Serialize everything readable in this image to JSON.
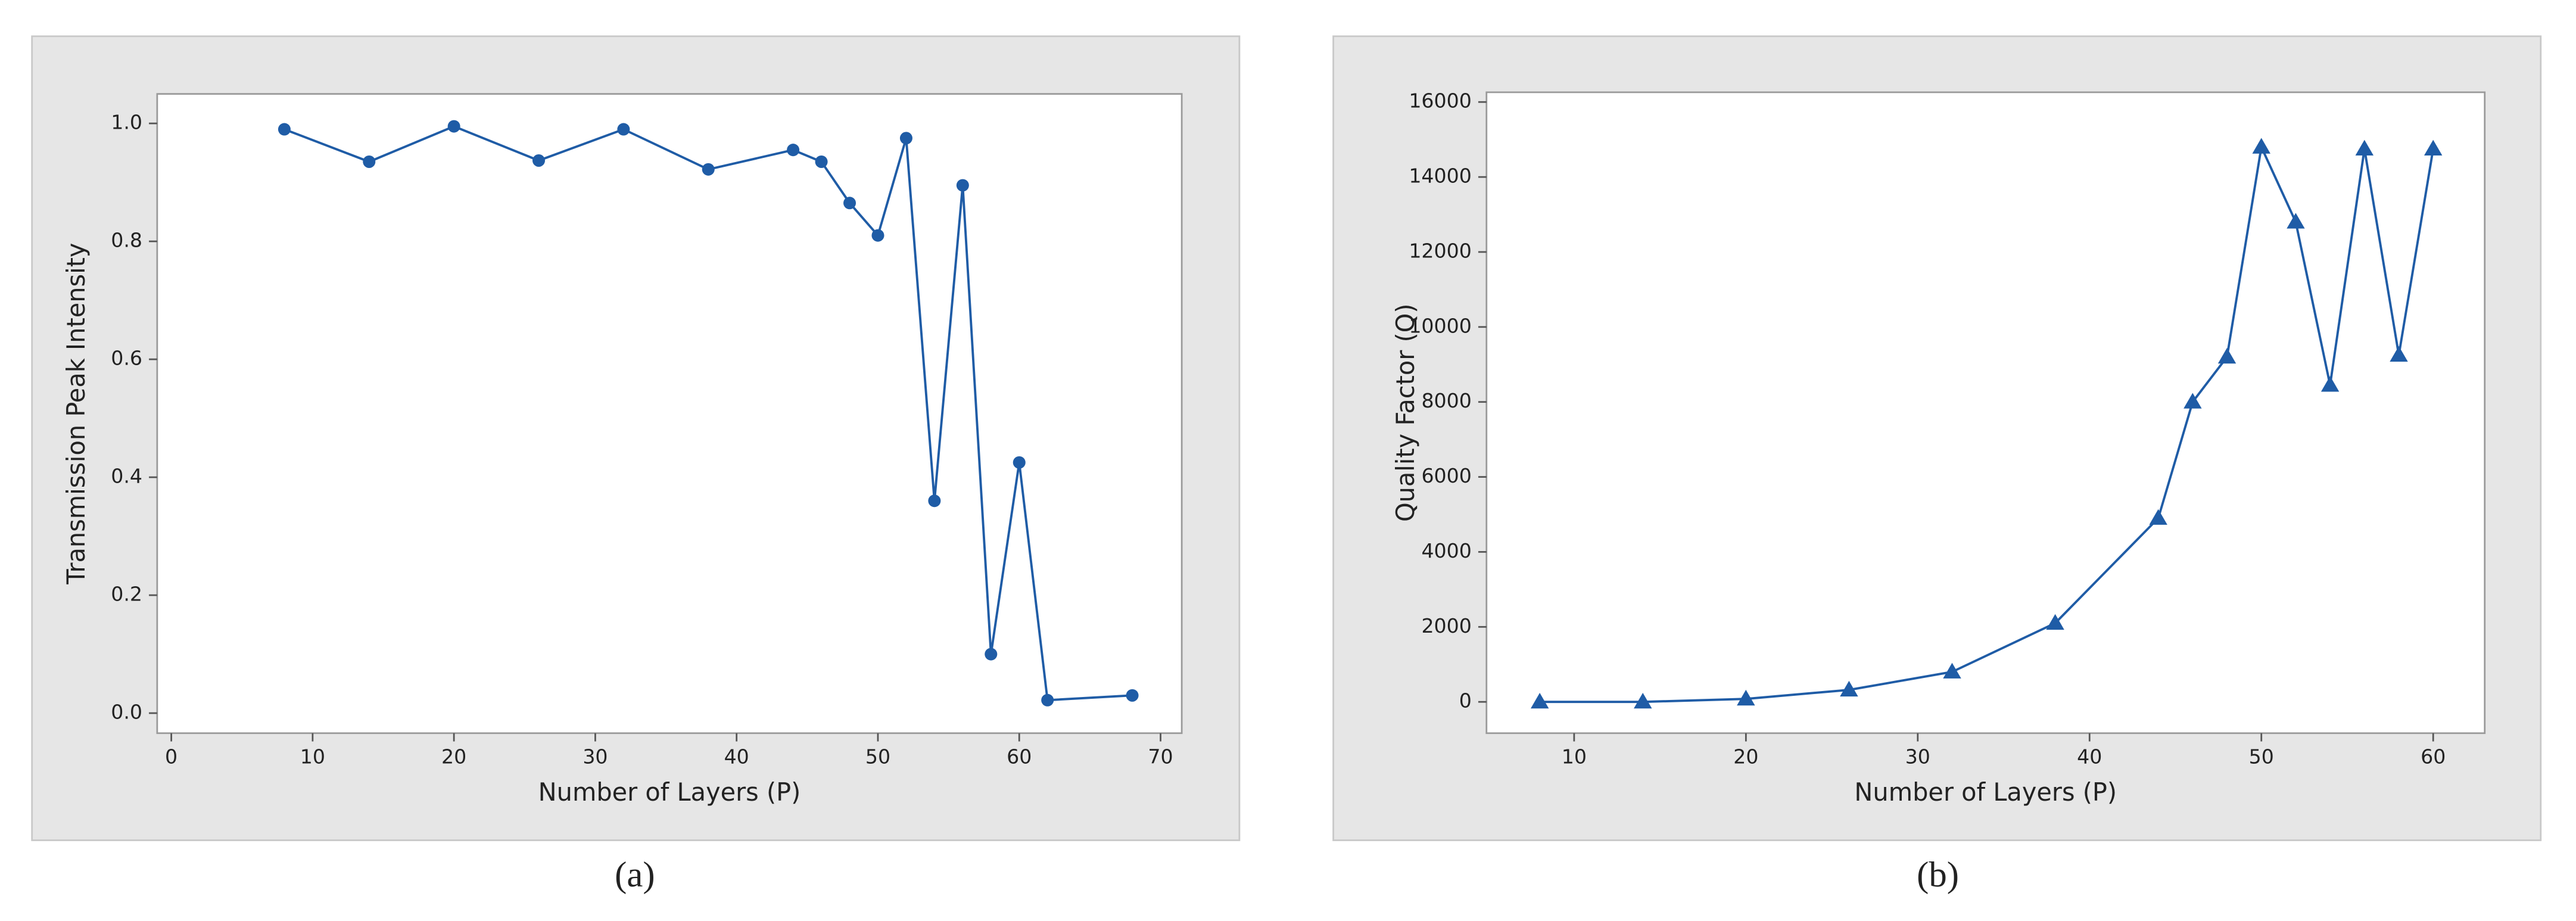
{
  "chart_data": [
    {
      "type": "line",
      "caption": "(a)",
      "x_label": "Number of Layers (P)",
      "y_label": "Transmission Peak Intensity",
      "marker": "circle",
      "x": [
        8,
        14,
        20,
        26,
        32,
        38,
        44,
        46,
        48,
        50,
        52,
        54,
        56,
        58,
        60,
        62,
        68
      ],
      "series": [
        {
          "name": "Transmission Peak Intensity",
          "color": "#1f5ca6",
          "values": [
            0.99,
            0.935,
            0.995,
            0.937,
            0.99,
            0.922,
            0.955,
            0.935,
            0.865,
            0.81,
            0.975,
            0.36,
            0.895,
            0.1,
            0.425,
            0.022,
            0.03
          ]
        }
      ],
      "xlim": [
        -1,
        71.5
      ],
      "ylim": [
        -0.034,
        1.05
      ],
      "xticks": [
        0,
        10,
        20,
        30,
        40,
        50,
        60,
        70
      ],
      "yticks": [
        {
          "value": 0,
          "label": "0.0"
        },
        0.2,
        0.4,
        0.6,
        0.8,
        {
          "value": 1,
          "label": "1.0"
        }
      ]
    },
    {
      "type": "line",
      "caption": "(b)",
      "x_label": "Number of Layers (P)",
      "y_label": "Quality Factor (Q)",
      "marker": "triangle",
      "x": [
        8,
        14,
        20,
        26,
        32,
        38,
        44,
        46,
        48,
        50,
        52,
        54,
        56,
        58,
        60
      ],
      "series": [
        {
          "name": "Quality Factor (Q)",
          "color": "#1f5ca6",
          "values": [
            0,
            0,
            80,
            320,
            800,
            2100,
            4900,
            8000,
            9200,
            14800,
            12800,
            8450,
            14750,
            9250,
            14750
          ]
        }
      ],
      "xlim": [
        4.9,
        63
      ],
      "ylim": [
        -835,
        16260
      ],
      "xticks": [
        10,
        20,
        30,
        40,
        50,
        60
      ],
      "yticks": [
        0,
        2000,
        4000,
        6000,
        8000,
        10000,
        12000,
        14000,
        16000
      ]
    }
  ]
}
